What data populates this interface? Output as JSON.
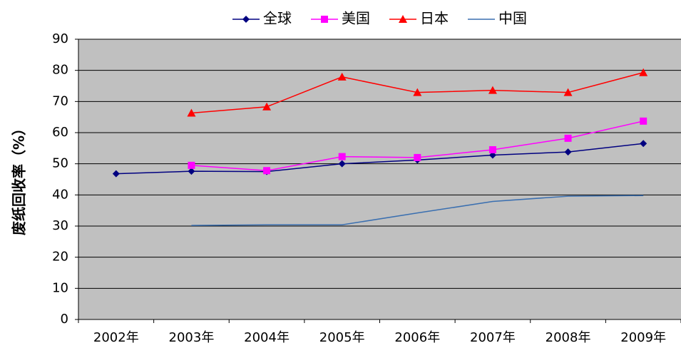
{
  "chart_data": {
    "type": "line",
    "y_label": "废纸回收率（%）",
    "categories": [
      "2002年",
      "2003年",
      "2004年",
      "2005年",
      "2006年",
      "2007年",
      "2008年",
      "2009年"
    ],
    "series": [
      {
        "name": "全球",
        "color": "#000080",
        "marker": "diamond",
        "values": [
          46.8,
          47.6,
          47.5,
          50.0,
          51.2,
          52.8,
          53.8,
          56.5
        ]
      },
      {
        "name": "美国",
        "color": "#ff00ff",
        "marker": "square",
        "values": [
          null,
          49.5,
          47.8,
          52.3,
          52.0,
          54.5,
          58.2,
          63.7
        ]
      },
      {
        "name": "日本",
        "color": "#ff0000",
        "marker": "triangle",
        "values": [
          null,
          66.3,
          68.3,
          77.9,
          72.9,
          73.6,
          72.9,
          79.3
        ]
      },
      {
        "name": "中国",
        "color": "#3a6fb0",
        "marker": "none",
        "values": [
          null,
          30.2,
          30.4,
          30.4,
          34.2,
          37.9,
          39.6,
          39.8
        ]
      }
    ],
    "ylim": [
      0,
      90
    ],
    "yticks": [
      0,
      10,
      20,
      30,
      40,
      50,
      60,
      70,
      80,
      90
    ],
    "grid": true,
    "legend": "top"
  }
}
